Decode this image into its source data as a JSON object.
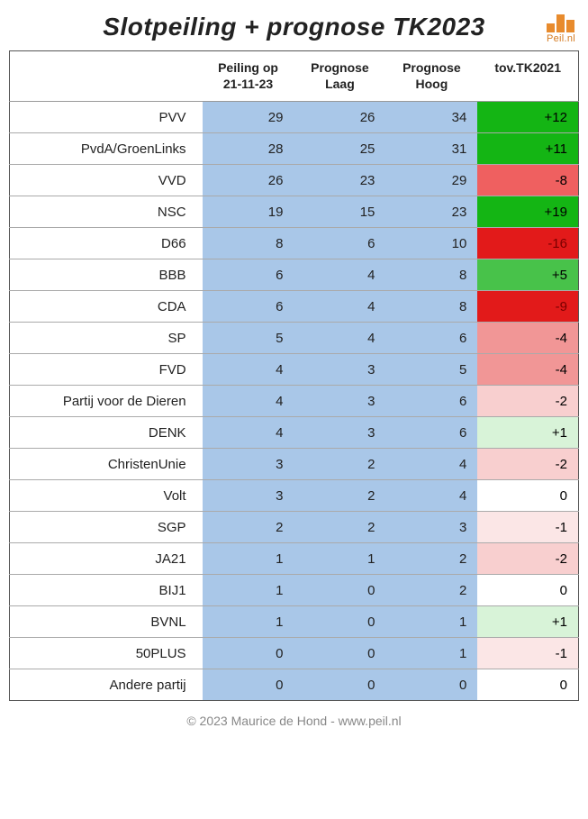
{
  "title": "Slotpeiling + prognose TK2023",
  "logo_text": "Peil.nl",
  "footer": "© 2023 Maurice de Hond - www.peil.nl",
  "columns": {
    "party": "",
    "peiling_l1": "Peiling op",
    "peiling_l2": "21-11-23",
    "laag_l1": "Prognose",
    "laag_l2": "Laag",
    "hoog_l1": "Prognose",
    "hoog_l2": "Hoog",
    "diff": "tov.TK2021"
  },
  "num_col_bg": "#a9c7e8",
  "diff_colors": {
    "green_strong": "#14b514",
    "green_mid": "#48c24a",
    "green_light": "#d8f3d8",
    "red_strong": "#e21a1a",
    "red_mid": "#ef6060",
    "red_midlight": "#f19696",
    "red_light": "#f8cfcf",
    "red_vlight": "#fbe6e6",
    "neutral": "#ffffff"
  },
  "rows": [
    {
      "party": "PVV",
      "peiling": 29,
      "laag": 26,
      "hoog": 34,
      "diff": "+12",
      "diff_text_color": "#000000",
      "diff_bg": "green_strong"
    },
    {
      "party": "PvdA/GroenLinks",
      "peiling": 28,
      "laag": 25,
      "hoog": 31,
      "diff": "+11",
      "diff_text_color": "#000000",
      "diff_bg": "green_strong"
    },
    {
      "party": "VVD",
      "peiling": 26,
      "laag": 23,
      "hoog": 29,
      "diff": "-8",
      "diff_text_color": "#000000",
      "diff_bg": "red_mid"
    },
    {
      "party": "NSC",
      "peiling": 19,
      "laag": 15,
      "hoog": 23,
      "diff": "+19",
      "diff_text_color": "#000000",
      "diff_bg": "green_strong"
    },
    {
      "party": "D66",
      "peiling": 8,
      "laag": 6,
      "hoog": 10,
      "diff": "-16",
      "diff_text_color": "#7a0000",
      "diff_bg": "red_strong"
    },
    {
      "party": "BBB",
      "peiling": 6,
      "laag": 4,
      "hoog": 8,
      "diff": "+5",
      "diff_text_color": "#000000",
      "diff_bg": "green_mid"
    },
    {
      "party": "CDA",
      "peiling": 6,
      "laag": 4,
      "hoog": 8,
      "diff": "-9",
      "diff_text_color": "#7a0000",
      "diff_bg": "red_strong"
    },
    {
      "party": "SP",
      "peiling": 5,
      "laag": 4,
      "hoog": 6,
      "diff": "-4",
      "diff_text_color": "#000000",
      "diff_bg": "red_midlight"
    },
    {
      "party": "FVD",
      "peiling": 4,
      "laag": 3,
      "hoog": 5,
      "diff": "-4",
      "diff_text_color": "#000000",
      "diff_bg": "red_midlight"
    },
    {
      "party": "Partij voor de Dieren",
      "peiling": 4,
      "laag": 3,
      "hoog": 6,
      "diff": "-2",
      "diff_text_color": "#000000",
      "diff_bg": "red_light"
    },
    {
      "party": "DENK",
      "peiling": 4,
      "laag": 3,
      "hoog": 6,
      "diff": "+1",
      "diff_text_color": "#000000",
      "diff_bg": "green_light"
    },
    {
      "party": "ChristenUnie",
      "peiling": 3,
      "laag": 2,
      "hoog": 4,
      "diff": "-2",
      "diff_text_color": "#000000",
      "diff_bg": "red_light"
    },
    {
      "party": "Volt",
      "peiling": 3,
      "laag": 2,
      "hoog": 4,
      "diff": "0",
      "diff_text_color": "#000000",
      "diff_bg": "neutral"
    },
    {
      "party": "SGP",
      "peiling": 2,
      "laag": 2,
      "hoog": 3,
      "diff": "-1",
      "diff_text_color": "#000000",
      "diff_bg": "red_vlight"
    },
    {
      "party": "JA21",
      "peiling": 1,
      "laag": 1,
      "hoog": 2,
      "diff": "-2",
      "diff_text_color": "#000000",
      "diff_bg": "red_light"
    },
    {
      "party": "BIJ1",
      "peiling": 1,
      "laag": 0,
      "hoog": 2,
      "diff": "0",
      "diff_text_color": "#000000",
      "diff_bg": "neutral"
    },
    {
      "party": "BVNL",
      "peiling": 1,
      "laag": 0,
      "hoog": 1,
      "diff": "+1",
      "diff_text_color": "#000000",
      "diff_bg": "green_light"
    },
    {
      "party": "50PLUS",
      "peiling": 0,
      "laag": 0,
      "hoog": 1,
      "diff": "-1",
      "diff_text_color": "#000000",
      "diff_bg": "red_vlight"
    },
    {
      "party": "Andere partij",
      "peiling": 0,
      "laag": 0,
      "hoog": 0,
      "diff": "0",
      "diff_text_color": "#000000",
      "diff_bg": "neutral"
    }
  ]
}
